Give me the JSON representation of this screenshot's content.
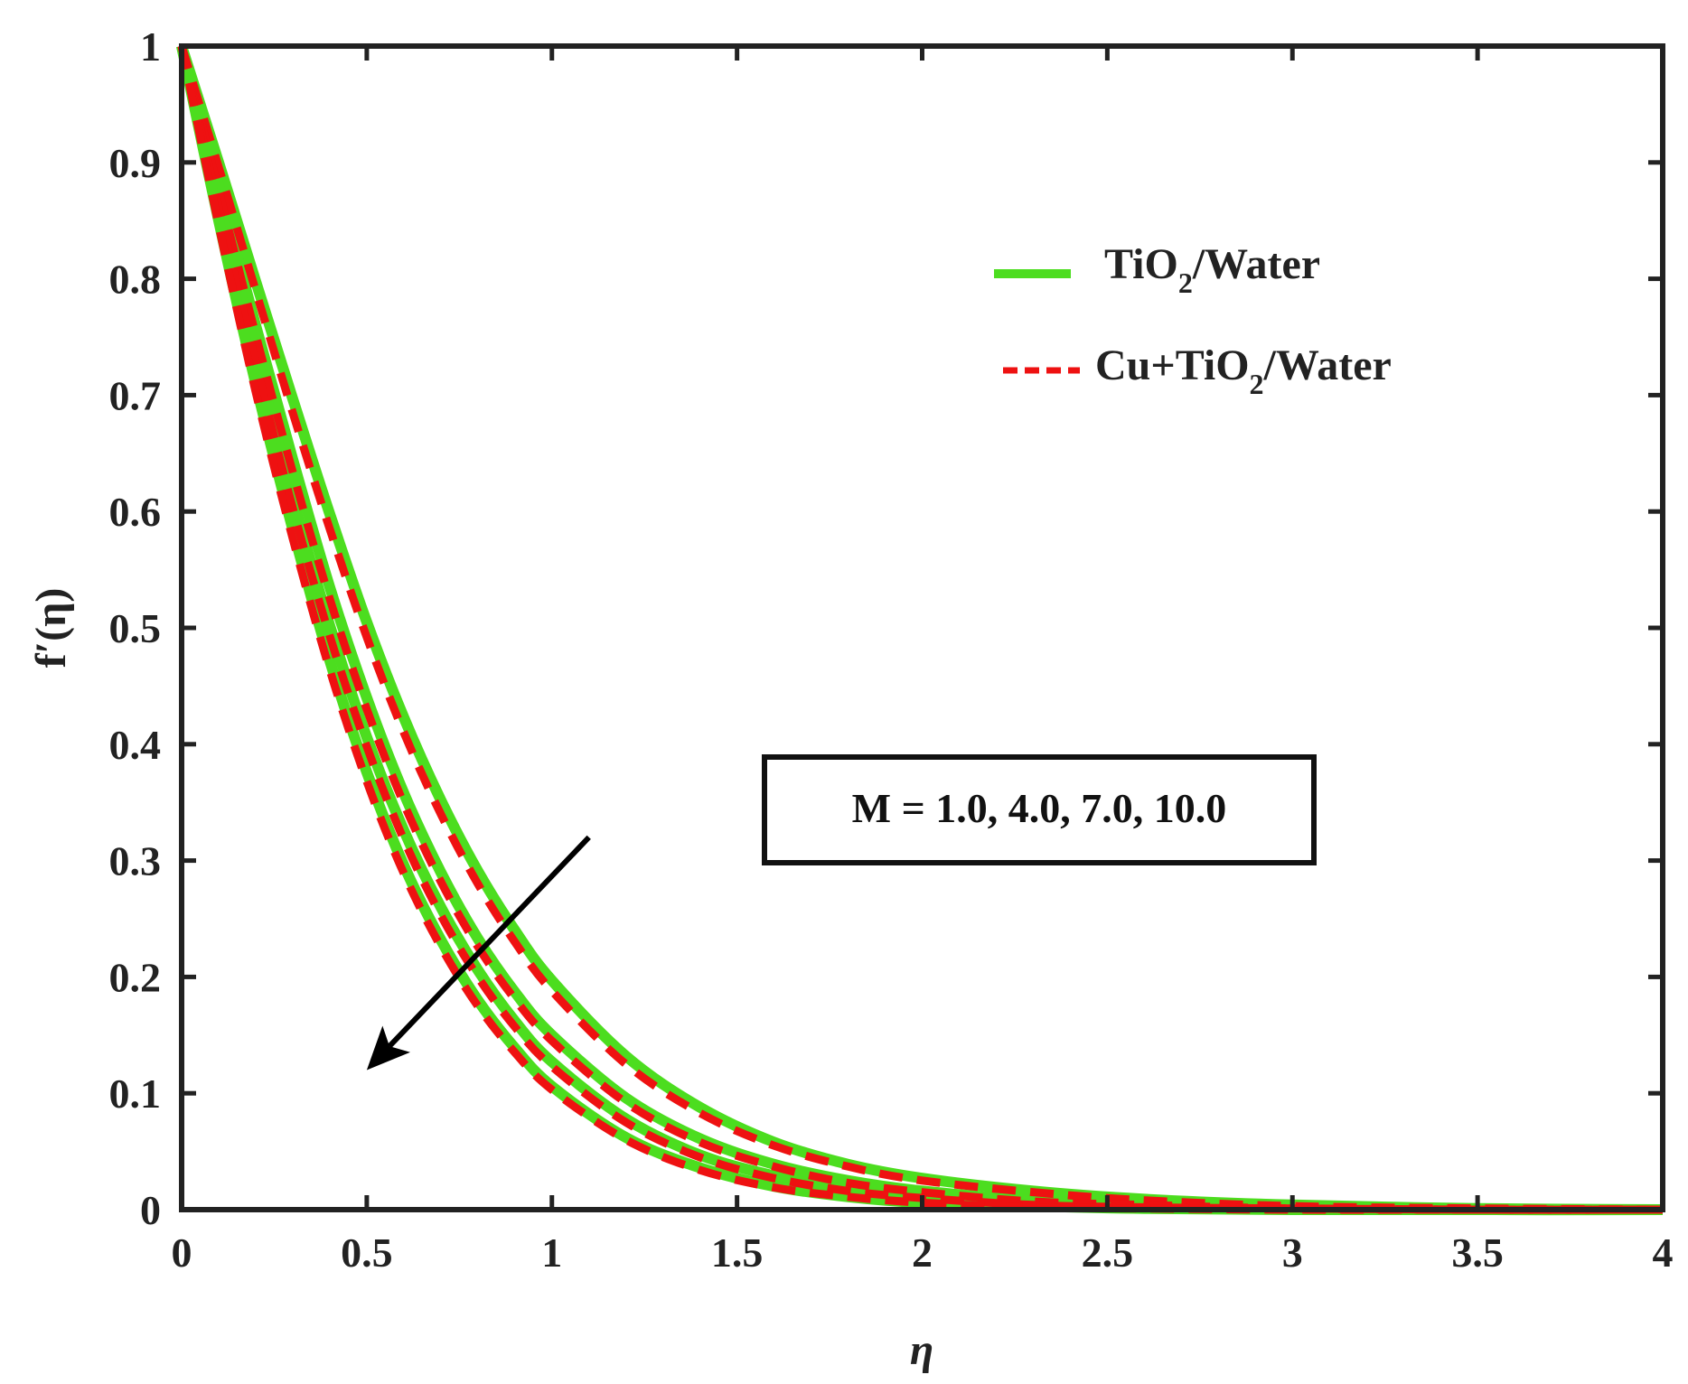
{
  "chart_data": {
    "type": "line",
    "xlabel": "η",
    "ylabel": "f′(η)",
    "xlim": [
      0,
      4
    ],
    "ylim": [
      0,
      1
    ],
    "xticks": [
      "0",
      "0.5",
      "1",
      "1.5",
      "2",
      "2.5",
      "3",
      "3.5",
      "4"
    ],
    "yticks": [
      "0",
      "0.1",
      "0.2",
      "0.3",
      "0.4",
      "0.5",
      "0.6",
      "0.7",
      "0.8",
      "0.9",
      "1"
    ],
    "grid": false,
    "legend_position": "top-right",
    "legend": [
      {
        "base": "TiO",
        "sub": "2",
        "rest": "/Water",
        "color": "#4cdd1f",
        "style": "solid"
      },
      {
        "base": "Cu+TiO",
        "sub": "2",
        "rest": "/Water",
        "color": "#ee1111",
        "style": "dashed"
      }
    ],
    "annotation": "M = 1.0, 4.0, 7.0, 10.0",
    "arrow": {
      "from": [
        1.1,
        0.32
      ],
      "to": [
        0.5,
        0.12
      ]
    },
    "series": [
      {
        "name": "TiO2/Water",
        "M": 1.0,
        "color": "#4cdd1f",
        "style": "solid",
        "x": [
          0,
          0.1,
          0.2,
          0.3,
          0.4,
          0.5,
          0.6,
          0.7,
          0.8,
          0.9,
          1.0,
          1.2,
          1.4,
          1.6,
          1.8,
          2.0,
          2.3,
          2.6,
          3.0,
          3.5,
          4.0
        ],
        "y": [
          1.0,
          0.9,
          0.798,
          0.697,
          0.598,
          0.505,
          0.423,
          0.352,
          0.291,
          0.24,
          0.197,
          0.132,
          0.088,
          0.058,
          0.039,
          0.027,
          0.016,
          0.009,
          0.004,
          0.001,
          0.0
        ]
      },
      {
        "name": "Cu+TiO2/Water",
        "M": 1.0,
        "color": "#ee1111",
        "style": "dashed",
        "x": [
          0,
          0.1,
          0.2,
          0.3,
          0.4,
          0.5,
          0.6,
          0.7,
          0.8,
          0.9,
          1.0,
          1.2,
          1.4,
          1.6,
          1.8,
          2.0,
          2.3,
          2.6,
          3.0,
          3.5,
          4.0
        ],
        "y": [
          1.0,
          0.896,
          0.79,
          0.685,
          0.585,
          0.492,
          0.41,
          0.34,
          0.28,
          0.23,
          0.188,
          0.125,
          0.083,
          0.055,
          0.037,
          0.025,
          0.015,
          0.008,
          0.003,
          0.001,
          0.0
        ]
      },
      {
        "name": "TiO2/Water",
        "M": 4.0,
        "color": "#4cdd1f",
        "style": "solid",
        "x": [
          0,
          0.1,
          0.2,
          0.3,
          0.4,
          0.5,
          0.6,
          0.7,
          0.8,
          0.9,
          1.0,
          1.2,
          1.4,
          1.6,
          1.8,
          2.0,
          2.3,
          2.6,
          3.0,
          3.5,
          4.0
        ],
        "y": [
          1.0,
          0.88,
          0.76,
          0.645,
          0.535,
          0.44,
          0.358,
          0.29,
          0.233,
          0.187,
          0.15,
          0.096,
          0.061,
          0.039,
          0.025,
          0.016,
          0.008,
          0.004,
          0.002,
          0.0,
          0.0
        ]
      },
      {
        "name": "Cu+TiO2/Water",
        "M": 4.0,
        "color": "#ee1111",
        "style": "dashed",
        "x": [
          0,
          0.1,
          0.2,
          0.3,
          0.4,
          0.5,
          0.6,
          0.7,
          0.8,
          0.9,
          1.0,
          1.2,
          1.4,
          1.6,
          1.8,
          2.0,
          2.3,
          2.6,
          3.0,
          3.5,
          4.0
        ],
        "y": [
          1.0,
          0.876,
          0.752,
          0.634,
          0.525,
          0.43,
          0.349,
          0.282,
          0.226,
          0.181,
          0.145,
          0.092,
          0.058,
          0.037,
          0.023,
          0.015,
          0.007,
          0.004,
          0.001,
          0.0,
          0.0
        ]
      },
      {
        "name": "TiO2/Water",
        "M": 7.0,
        "color": "#4cdd1f",
        "style": "solid",
        "x": [
          0,
          0.1,
          0.2,
          0.3,
          0.4,
          0.5,
          0.6,
          0.7,
          0.8,
          0.9,
          1.0,
          1.2,
          1.4,
          1.6,
          1.8,
          2.0,
          2.3,
          2.6,
          3.0,
          3.5,
          4.0
        ],
        "y": [
          1.0,
          0.865,
          0.735,
          0.612,
          0.502,
          0.406,
          0.326,
          0.26,
          0.206,
          0.162,
          0.127,
          0.078,
          0.047,
          0.029,
          0.017,
          0.01,
          0.005,
          0.002,
          0.001,
          0.0,
          0.0
        ]
      },
      {
        "name": "Cu+TiO2/Water",
        "M": 7.0,
        "color": "#ee1111",
        "style": "dashed",
        "x": [
          0,
          0.1,
          0.2,
          0.3,
          0.4,
          0.5,
          0.6,
          0.7,
          0.8,
          0.9,
          1.0,
          1.2,
          1.4,
          1.6,
          1.8,
          2.0,
          2.3,
          2.6,
          3.0,
          3.5,
          4.0
        ],
        "y": [
          1.0,
          0.861,
          0.728,
          0.603,
          0.493,
          0.398,
          0.318,
          0.253,
          0.2,
          0.157,
          0.123,
          0.075,
          0.045,
          0.027,
          0.016,
          0.01,
          0.004,
          0.002,
          0.001,
          0.0,
          0.0
        ]
      },
      {
        "name": "TiO2/Water",
        "M": 10.0,
        "color": "#4cdd1f",
        "style": "solid",
        "x": [
          0,
          0.1,
          0.2,
          0.3,
          0.4,
          0.5,
          0.6,
          0.7,
          0.8,
          0.9,
          1.0,
          1.2,
          1.4,
          1.6,
          1.8,
          2.0,
          2.3,
          2.6,
          3.0,
          3.5,
          4.0
        ],
        "y": [
          1.0,
          0.85,
          0.71,
          0.585,
          0.472,
          0.376,
          0.296,
          0.232,
          0.18,
          0.139,
          0.106,
          0.062,
          0.036,
          0.02,
          0.011,
          0.006,
          0.003,
          0.001,
          0.0,
          0.0,
          0.0
        ]
      },
      {
        "name": "Cu+TiO2/Water",
        "M": 10.0,
        "color": "#ee1111",
        "style": "dashed",
        "x": [
          0,
          0.1,
          0.2,
          0.3,
          0.4,
          0.5,
          0.6,
          0.7,
          0.8,
          0.9,
          1.0,
          1.2,
          1.4,
          1.6,
          1.8,
          2.0,
          2.3,
          2.6,
          3.0,
          3.5,
          4.0
        ],
        "y": [
          1.0,
          0.846,
          0.703,
          0.577,
          0.464,
          0.368,
          0.289,
          0.226,
          0.175,
          0.135,
          0.103,
          0.06,
          0.034,
          0.019,
          0.011,
          0.006,
          0.002,
          0.001,
          0.0,
          0.0,
          0.0
        ]
      }
    ]
  }
}
